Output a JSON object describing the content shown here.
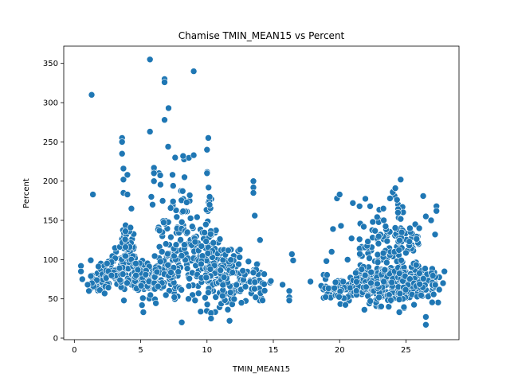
{
  "chart_data": {
    "type": "scatter",
    "title": "Chamise TMIN_MEAN15 vs Percent",
    "xlabel": "TMIN_MEAN15",
    "ylabel": "Percent",
    "xlim": [
      -0.8,
      29.0
    ],
    "ylim": [
      -2,
      372
    ],
    "xticks": [
      0,
      5,
      10,
      15,
      20,
      25
    ],
    "yticks": [
      0,
      50,
      100,
      150,
      200,
      250,
      300,
      350
    ],
    "grid": false,
    "legend": "none",
    "marker_color": "#1f77b4",
    "marker_edge": "#ffffff",
    "outliers": [
      [
        0.5,
        92
      ],
      [
        0.5,
        85
      ],
      [
        0.6,
        75
      ],
      [
        1.0,
        68
      ],
      [
        1.1,
        60
      ],
      [
        1.3,
        310
      ],
      [
        1.4,
        183
      ],
      [
        3.6,
        255
      ],
      [
        3.6,
        250
      ],
      [
        3.6,
        235
      ],
      [
        3.7,
        216
      ],
      [
        3.7,
        202
      ],
      [
        3.7,
        185
      ],
      [
        4.0,
        183
      ],
      [
        4.0,
        208
      ],
      [
        4.3,
        165
      ],
      [
        5.1,
        42
      ],
      [
        5.2,
        33
      ],
      [
        5.7,
        355
      ],
      [
        5.7,
        263
      ],
      [
        5.8,
        180
      ],
      [
        5.9,
        170
      ],
      [
        6.0,
        215
      ],
      [
        6.0,
        217
      ],
      [
        6.0,
        210
      ],
      [
        6.0,
        200
      ],
      [
        6.8,
        330
      ],
      [
        6.8,
        326
      ],
      [
        6.8,
        278
      ],
      [
        7.1,
        293
      ],
      [
        7.4,
        208
      ],
      [
        7.6,
        230
      ],
      [
        8.1,
        20
      ],
      [
        8.2,
        232
      ],
      [
        8.3,
        205
      ],
      [
        9.0,
        340
      ],
      [
        9.0,
        233
      ],
      [
        10.0,
        240
      ],
      [
        10.1,
        255
      ],
      [
        10.0,
        210
      ],
      [
        10.2,
        180
      ],
      [
        10.3,
        32
      ],
      [
        10.3,
        25
      ],
      [
        11.7,
        22
      ],
      [
        12.6,
        45
      ],
      [
        13.5,
        200
      ],
      [
        13.5,
        192
      ],
      [
        13.5,
        185
      ],
      [
        13.6,
        156
      ],
      [
        14.0,
        125
      ],
      [
        15.7,
        68
      ],
      [
        16.2,
        60
      ],
      [
        16.2,
        52
      ],
      [
        16.2,
        48
      ],
      [
        16.4,
        107
      ],
      [
        16.5,
        99
      ],
      [
        17.8,
        72
      ],
      [
        19.0,
        98
      ],
      [
        19.4,
        110
      ],
      [
        19.5,
        139
      ],
      [
        19.8,
        178
      ],
      [
        20.0,
        183
      ],
      [
        20.1,
        143
      ],
      [
        20.6,
        100
      ],
      [
        20.9,
        127
      ],
      [
        21.0,
        172
      ],
      [
        21.5,
        168
      ],
      [
        22.3,
        168
      ],
      [
        22.5,
        148
      ],
      [
        23.3,
        165
      ],
      [
        23.8,
        178
      ],
      [
        24.0,
        186
      ],
      [
        24.2,
        191
      ],
      [
        24.6,
        202
      ],
      [
        24.4,
        160
      ],
      [
        24.5,
        33
      ],
      [
        25.3,
        140
      ],
      [
        25.7,
        145
      ],
      [
        26.0,
        140
      ],
      [
        26.3,
        181
      ],
      [
        26.5,
        155
      ],
      [
        26.5,
        27
      ],
      [
        26.5,
        17
      ],
      [
        26.9,
        150
      ],
      [
        27.2,
        132
      ],
      [
        27.3,
        168
      ],
      [
        27.3,
        162
      ],
      [
        27.8,
        70
      ],
      [
        27.9,
        85
      ],
      [
        8.6,
        50
      ],
      [
        9.1,
        48
      ],
      [
        6.6,
        110
      ],
      [
        6.9,
        120
      ]
    ],
    "clusters": [
      {
        "x_min": 1.2,
        "x_max": 2.2,
        "y_mean": 75,
        "y_sd": 10,
        "count": 40
      },
      {
        "x_min": 2.2,
        "x_max": 3.6,
        "y_mean": 85,
        "y_sd": 13,
        "count": 55
      },
      {
        "x_min": 3.4,
        "x_max": 4.6,
        "y_mean": 95,
        "y_sd": 18,
        "count": 90
      },
      {
        "x_min": 3.8,
        "x_max": 4.3,
        "y_mean": 130,
        "y_sd": 14,
        "count": 12
      },
      {
        "x_min": 4.5,
        "x_max": 6.0,
        "y_mean": 75,
        "y_sd": 10,
        "count": 80
      },
      {
        "x_min": 6.0,
        "x_max": 8.0,
        "y_mean": 82,
        "y_sd": 15,
        "count": 95
      },
      {
        "x_min": 6.3,
        "x_max": 8.8,
        "y_mean": 135,
        "y_sd": 35,
        "count": 65
      },
      {
        "x_min": 8.0,
        "x_max": 9.5,
        "y_mean": 100,
        "y_sd": 25,
        "count": 55
      },
      {
        "x_min": 9.5,
        "x_max": 11.0,
        "y_mean": 90,
        "y_sd": 28,
        "count": 90
      },
      {
        "x_min": 9.8,
        "x_max": 10.4,
        "y_mean": 160,
        "y_sd": 25,
        "count": 16
      },
      {
        "x_min": 11.0,
        "x_max": 12.5,
        "y_mean": 78,
        "y_sd": 22,
        "count": 70
      },
      {
        "x_min": 12.5,
        "x_max": 14.2,
        "y_mean": 75,
        "y_sd": 15,
        "count": 40
      },
      {
        "x_min": 14.2,
        "x_max": 15.2,
        "y_mean": 70,
        "y_sd": 8,
        "count": 5
      },
      {
        "x_min": 18.6,
        "x_max": 19.6,
        "y_mean": 62,
        "y_sd": 8,
        "count": 20
      },
      {
        "x_min": 19.6,
        "x_max": 21.2,
        "y_mean": 62,
        "y_sd": 8,
        "count": 45
      },
      {
        "x_min": 21.2,
        "x_max": 22.8,
        "y_mean": 68,
        "y_sd": 12,
        "count": 90
      },
      {
        "x_min": 21.5,
        "x_max": 23.0,
        "y_mean": 115,
        "y_sd": 25,
        "count": 35
      },
      {
        "x_min": 22.8,
        "x_max": 24.4,
        "y_mean": 70,
        "y_sd": 14,
        "count": 110
      },
      {
        "x_min": 22.8,
        "x_max": 24.8,
        "y_mean": 125,
        "y_sd": 22,
        "count": 55
      },
      {
        "x_min": 24.4,
        "x_max": 26.0,
        "y_mean": 70,
        "y_sd": 14,
        "count": 100
      },
      {
        "x_min": 24.4,
        "x_max": 26.0,
        "y_mean": 115,
        "y_sd": 18,
        "count": 35
      },
      {
        "x_min": 26.0,
        "x_max": 27.6,
        "y_mean": 68,
        "y_sd": 10,
        "count": 45
      }
    ]
  }
}
